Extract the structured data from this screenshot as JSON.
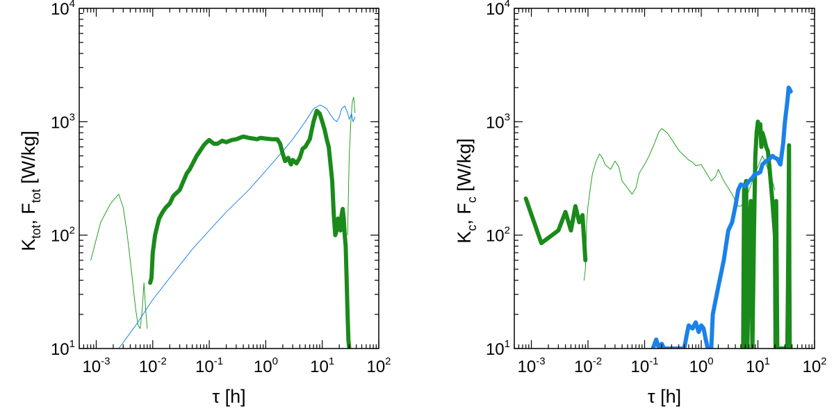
{
  "chart_data": [
    {
      "type": "line",
      "panel": "left",
      "title": "",
      "xlabel": "τ [h]",
      "ylabel": {
        "parts": [
          {
            "t": "K",
            "sub": false
          },
          {
            "t": "tot",
            "sub": true
          },
          {
            "t": ", F",
            "sub": false
          },
          {
            "t": "tot",
            "sub": true
          },
          {
            "t": " [W/kg]",
            "sub": false
          }
        ]
      },
      "xscale": "log",
      "yscale": "log",
      "xlim": [
        0.0005,
        100
      ],
      "ylim": [
        10,
        10000
      ],
      "xticks": [
        {
          "base": "10",
          "exp": "-3"
        },
        {
          "base": "10",
          "exp": "-2"
        },
        {
          "base": "10",
          "exp": "-1"
        },
        {
          "base": "10",
          "exp": "0"
        },
        {
          "base": "10",
          "exp": "1"
        },
        {
          "base": "10",
          "exp": "2"
        }
      ],
      "yticks": [
        {
          "base": "10",
          "exp": "1"
        },
        {
          "base": "10",
          "exp": "2"
        },
        {
          "base": "10",
          "exp": "3"
        },
        {
          "base": "10",
          "exp": "4"
        }
      ],
      "series": [
        {
          "name": "thin green",
          "color": "#22a022",
          "width": 1,
          "x": [
            0.0008,
            0.0012,
            0.0018,
            0.0025,
            0.003,
            0.0035,
            0.004,
            0.0045,
            0.005,
            0.0055,
            0.006,
            0.0065,
            0.007,
            0.0075,
            0.008
          ],
          "y": [
            60,
            130,
            190,
            230,
            175,
            105,
            60,
            35,
            22,
            16,
            15,
            22,
            38,
            22,
            15
          ]
        },
        {
          "name": "thin green tail",
          "color": "#22a022",
          "width": 1,
          "x": [
            28,
            30,
            32,
            34,
            36,
            38
          ],
          "y": [
            100,
            500,
            1000,
            1500,
            1650,
            1200
          ]
        },
        {
          "name": "thin blue",
          "color": "#1a82e8",
          "width": 1,
          "x": [
            0.0025,
            0.005,
            0.01,
            0.02,
            0.05,
            0.1,
            0.2,
            0.5,
            1,
            2,
            3,
            5,
            7,
            9,
            10,
            12,
            14,
            16,
            18,
            20,
            22,
            25,
            28,
            30,
            33,
            35,
            38
          ],
          "y": [
            10,
            16,
            27,
            42,
            75,
            110,
            160,
            250,
            370,
            550,
            700,
            1000,
            1300,
            1400,
            1380,
            1300,
            1150,
            1050,
            1000,
            1100,
            1300,
            1380,
            1200,
            1050,
            1180,
            1000,
            1100
          ]
        },
        {
          "name": "thick green",
          "color": "#1a8a1a",
          "width": 6,
          "x": [
            0.009,
            0.0095,
            0.01,
            0.011,
            0.012,
            0.013,
            0.015,
            0.017,
            0.02,
            0.023,
            0.025,
            0.03,
            0.035,
            0.04,
            0.045,
            0.05,
            0.055,
            0.06,
            0.07,
            0.08,
            0.09,
            0.1,
            0.12,
            0.14,
            0.17,
            0.2,
            0.25,
            0.3,
            0.4,
            0.5,
            0.6,
            0.7,
            0.8,
            1,
            1.3,
            1.6,
            1.8,
            2,
            2.2,
            2.5,
            2.8,
            3,
            3.5,
            4,
            4.5,
            5,
            6,
            7,
            8,
            9,
            10,
            11,
            12,
            13,
            14,
            15,
            16,
            17,
            18,
            19,
            20,
            21,
            22,
            23,
            24,
            25,
            26,
            27,
            28,
            29,
            30
          ],
          "y": [
            38,
            42,
            70,
            100,
            120,
            140,
            160,
            175,
            190,
            220,
            230,
            250,
            300,
            350,
            380,
            420,
            460,
            500,
            560,
            620,
            660,
            690,
            640,
            640,
            680,
            660,
            690,
            700,
            740,
            720,
            710,
            700,
            720,
            710,
            700,
            700,
            640,
            520,
            450,
            480,
            420,
            460,
            430,
            480,
            580,
            600,
            700,
            1000,
            1250,
            1180,
            1000,
            850,
            700,
            600,
            420,
            300,
            150,
            100,
            110,
            140,
            130,
            110,
            150,
            170,
            140,
            100,
            80,
            40,
            20,
            12,
            10
          ]
        }
      ]
    },
    {
      "type": "line",
      "panel": "right",
      "title": "",
      "xlabel": "τ [h]",
      "ylabel": {
        "parts": [
          {
            "t": "K",
            "sub": false
          },
          {
            "t": "c",
            "sub": true
          },
          {
            "t": ", F",
            "sub": false
          },
          {
            "t": "c",
            "sub": true
          },
          {
            "t": " [W/kg]",
            "sub": false
          }
        ]
      },
      "xscale": "log",
      "yscale": "log",
      "xlim": [
        0.0005,
        100
      ],
      "ylim": [
        10,
        10000
      ],
      "xticks": [
        {
          "base": "10",
          "exp": "-3"
        },
        {
          "base": "10",
          "exp": "-2"
        },
        {
          "base": "10",
          "exp": "-1"
        },
        {
          "base": "10",
          "exp": "0"
        },
        {
          "base": "10",
          "exp": "1"
        },
        {
          "base": "10",
          "exp": "2"
        }
      ],
      "yticks": [
        {
          "base": "10",
          "exp": "1"
        },
        {
          "base": "10",
          "exp": "2"
        },
        {
          "base": "10",
          "exp": "3"
        },
        {
          "base": "10",
          "exp": "4"
        }
      ],
      "series": [
        {
          "name": "thin green",
          "color": "#22a022",
          "width": 1,
          "x": [
            0.0085,
            0.009,
            0.0095,
            0.01,
            0.011,
            0.012,
            0.014,
            0.016,
            0.018,
            0.02,
            0.025,
            0.03,
            0.035,
            0.04,
            0.05,
            0.06,
            0.07,
            0.08,
            0.1,
            0.12,
            0.15,
            0.18,
            0.2,
            0.25,
            0.3,
            0.35,
            0.4,
            0.5,
            0.6,
            0.7,
            0.8,
            1,
            1.2,
            1.5,
            1.8,
            2,
            2.5,
            3,
            3.5,
            4,
            4.5,
            5,
            6,
            7,
            8,
            9,
            10,
            12,
            14,
            16,
            18,
            20
          ],
          "y": [
            40,
            50,
            130,
            180,
            260,
            350,
            450,
            520,
            480,
            420,
            380,
            450,
            400,
            300,
            260,
            230,
            260,
            350,
            420,
            500,
            650,
            820,
            870,
            800,
            700,
            620,
            560,
            500,
            460,
            440,
            410,
            420,
            360,
            300,
            330,
            380,
            300,
            260,
            230,
            200,
            180,
            180,
            200,
            250,
            300,
            350,
            400,
            500,
            420,
            350,
            300,
            250
          ]
        },
        {
          "name": "thick green",
          "color": "#1a8a1a",
          "width": 6,
          "x": [
            0.0008,
            0.0015,
            0.003,
            0.004,
            0.005,
            0.006,
            0.007,
            0.008,
            0.009
          ],
          "y": [
            210,
            85,
            110,
            160,
            110,
            180,
            130,
            150,
            60
          ]
        },
        {
          "name": "thick green right",
          "color": "#1a8a1a",
          "width": 6,
          "x": [
            5.5,
            5.7,
            6.2,
            6.5,
            7,
            7.5,
            8,
            8.5,
            9,
            9.5,
            10,
            10.5,
            11,
            11.5,
            12,
            13,
            14,
            15,
            16,
            18,
            20,
            20.5,
            21,
            22,
            23,
            24,
            25,
            26,
            27,
            28,
            29,
            30,
            31,
            32,
            33,
            34,
            35,
            35.5,
            36,
            36.5
          ],
          "y": [
            10,
            250,
            300,
            10,
            80,
            200,
            10,
            100,
            500,
            800,
            1000,
            800,
            950,
            600,
            800,
            700,
            600,
            550,
            400,
            200,
            100,
            10,
            200,
            10,
            10,
            10,
            10,
            10,
            10,
            10,
            10,
            10,
            10,
            10,
            10,
            35,
            200,
            620,
            40,
            10
          ]
        },
        {
          "name": "thick blue",
          "color": "#1a82e8",
          "width": 6,
          "x": [
            0.14,
            0.16,
            0.18,
            0.2,
            0.22,
            0.5,
            0.55,
            0.6,
            0.7,
            0.8,
            0.9,
            1.0,
            1.1,
            1.2,
            1.3,
            1.5,
            1.6,
            2,
            2.5,
            3,
            3.5,
            4,
            4.5,
            5,
            6,
            7,
            8,
            9,
            10,
            11,
            12,
            14,
            16,
            18,
            20,
            22,
            25,
            28,
            30,
            33,
            35,
            38
          ],
          "y": [
            10,
            12,
            10,
            11,
            10,
            10,
            13,
            16,
            15,
            17,
            14,
            16,
            15,
            12,
            10,
            10,
            20,
            35,
            60,
            110,
            130,
            180,
            250,
            280,
            270,
            300,
            320,
            350,
            350,
            360,
            420,
            450,
            470,
            500,
            480,
            470,
            420,
            650,
            1000,
            1500,
            2000,
            1850
          ]
        }
      ]
    }
  ]
}
